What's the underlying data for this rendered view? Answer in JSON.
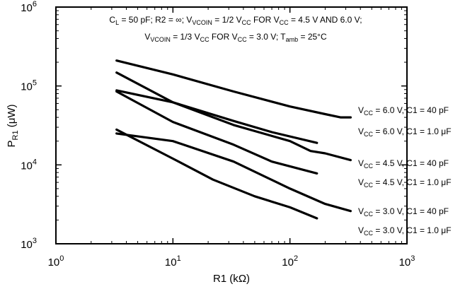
{
  "chart_data": {
    "type": "line",
    "x_scale": "log",
    "y_scale": "log",
    "xlim": [
      1,
      1000
    ],
    "ylim": [
      1000,
      1000000
    ],
    "grid": false,
    "xlabel": {
      "main": "R1 (k",
      "unit_symbol": "Ω",
      "close": ")"
    },
    "ylabel": {
      "main": "P",
      "sub": "R1",
      "rest": " (μW)"
    },
    "x_ticks": [
      {
        "base": "10",
        "exp": "0",
        "value": 1
      },
      {
        "base": "10",
        "exp": "1",
        "value": 10
      },
      {
        "base": "10",
        "exp": "2",
        "value": 100
      },
      {
        "base": "10",
        "exp": "3",
        "value": 1000
      }
    ],
    "y_ticks": [
      {
        "base": "10",
        "exp": "3",
        "value": 1000
      },
      {
        "base": "10",
        "exp": "4",
        "value": 10000
      },
      {
        "base": "10",
        "exp": "5",
        "value": 100000
      },
      {
        "base": "10",
        "exp": "6",
        "value": 1000000
      }
    ],
    "annotation": {
      "line1": [
        {
          "t": "C"
        },
        {
          "t": "L",
          "sub": true
        },
        {
          "t": " = 50 pF; R2 = ∞; V"
        },
        {
          "t": "VCOIN",
          "sub": true
        },
        {
          "t": " = 1/2 V"
        },
        {
          "t": "CC",
          "sub": true
        },
        {
          "t": " FOR V"
        },
        {
          "t": "CC",
          "sub": true
        },
        {
          "t": " = 4.5 V AND 6.0 V;"
        }
      ],
      "line2": [
        {
          "t": "V"
        },
        {
          "t": "VCOIN",
          "sub": true
        },
        {
          "t": " = 1/3 V"
        },
        {
          "t": "CC",
          "sub": true
        },
        {
          "t": " FOR V"
        },
        {
          "t": "CC",
          "sub": true
        },
        {
          "t": " = 3.0 V; T"
        },
        {
          "t": "amb",
          "sub": true
        },
        {
          "t": " = 25°C"
        }
      ]
    },
    "series": [
      {
        "name": "VCC = 6.0 V, C1 = 40 pF",
        "label": [
          {
            "t": "V"
          },
          {
            "t": "CC",
            "sub": true
          },
          {
            "t": " = 6.0 V, C1 = 40 pF"
          }
        ],
        "points": [
          [
            3.3,
            210000
          ],
          [
            10,
            140000
          ],
          [
            33,
            85000
          ],
          [
            100,
            55000
          ],
          [
            200,
            44000
          ],
          [
            270,
            40000
          ],
          [
            330,
            40000
          ]
        ]
      },
      {
        "name": "VCC = 6.0 V, C1 = 1.0 μF",
        "label": [
          {
            "t": "V"
          },
          {
            "t": "CC",
            "sub": true
          },
          {
            "t": " = 6.0 V, C1 = 1.0 μF"
          }
        ],
        "points": [
          [
            3.3,
            88000
          ],
          [
            10,
            62000
          ],
          [
            33,
            36000
          ],
          [
            70,
            26000
          ],
          [
            170,
            19000
          ]
        ]
      },
      {
        "name": "VCC = 4.5 V, C1 = 40 pF",
        "label": [
          {
            "t": "V"
          },
          {
            "t": "CC",
            "sub": true
          },
          {
            "t": " = 4.5 V, C1 = 40 pF"
          }
        ],
        "points": [
          [
            3.3,
            148000
          ],
          [
            10,
            62000
          ],
          [
            33,
            32000
          ],
          [
            100,
            20000
          ],
          [
            150,
            15000
          ],
          [
            200,
            14000
          ],
          [
            330,
            11500
          ]
        ]
      },
      {
        "name": "VCC = 4.5 V, C1 = 1.0 μF",
        "label": [
          {
            "t": "V"
          },
          {
            "t": "CC",
            "sub": true
          },
          {
            "t": " = 4.5 V, C1 = 1.0 μF"
          }
        ],
        "points": [
          [
            3.3,
            85000
          ],
          [
            10,
            35000
          ],
          [
            33,
            18000
          ],
          [
            70,
            11000
          ],
          [
            170,
            7800
          ]
        ]
      },
      {
        "name": "VCC = 3.0 V, C1 = 40 pF",
        "label": [
          {
            "t": "V"
          },
          {
            "t": "CC",
            "sub": true
          },
          {
            "t": " = 3.0 V, C1 = 40 pF"
          }
        ],
        "points": [
          [
            3.3,
            25000
          ],
          [
            10,
            20000
          ],
          [
            33,
            11000
          ],
          [
            100,
            5000
          ],
          [
            200,
            3200
          ],
          [
            330,
            2600
          ]
        ]
      },
      {
        "name": "VCC = 3.0 V, C1 = 1.0 μF",
        "label": [
          {
            "t": "V"
          },
          {
            "t": "CC",
            "sub": true
          },
          {
            "t": " = 3.0 V, C1 = 1.0 μF"
          }
        ],
        "points": [
          [
            3.3,
            28000
          ],
          [
            10,
            12000
          ],
          [
            22,
            6500
          ],
          [
            50,
            4000
          ],
          [
            100,
            2900
          ],
          [
            170,
            2100
          ]
        ]
      }
    ]
  }
}
